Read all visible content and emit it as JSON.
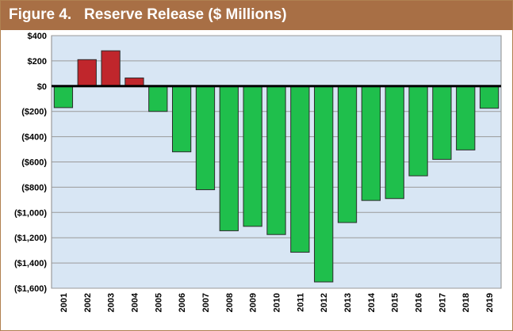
{
  "figure": {
    "number": "Figure 4.",
    "title": "Reserve Release ($ Millions)"
  },
  "colors": {
    "header": "#a86f45",
    "plot_background": "#d8e6f4",
    "positive_bar": "#c0262c",
    "negative_bar": "#1fbf4c"
  },
  "chart_data": {
    "type": "bar",
    "title": "Reserve Release ($ Millions)",
    "categories": [
      "2001",
      "2002",
      "2003",
      "2004",
      "2005",
      "2006",
      "2007",
      "2008",
      "2009",
      "2010",
      "2011",
      "2012",
      "2013",
      "2014",
      "2015",
      "2016",
      "2017",
      "2018",
      "2019"
    ],
    "values": [
      -170,
      210,
      280,
      65,
      -200,
      -520,
      -820,
      -1145,
      -1110,
      -1175,
      -1315,
      -1550,
      -1080,
      -905,
      -890,
      -710,
      -580,
      -505,
      -175
    ],
    "ylim": [
      -1600,
      400
    ],
    "yticks": [
      400,
      200,
      0,
      -200,
      -400,
      -600,
      -800,
      -1000,
      -1200,
      -1400,
      -1600
    ],
    "ytick_labels": [
      "$400",
      "$200",
      "$0",
      "($200)",
      "($400)",
      "($600)",
      "($800)",
      "($1,000)",
      "($1,200)",
      "($1,400)",
      "($1,600)"
    ],
    "grid": true,
    "legend": "none"
  }
}
